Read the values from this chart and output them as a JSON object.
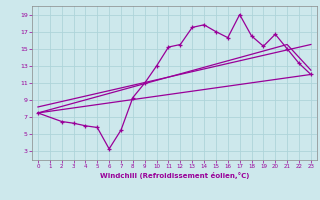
{
  "xlabel": "Windchill (Refroidissement éolien,°C)",
  "bg_color": "#cde8ec",
  "grid_color": "#aed4da",
  "line_color": "#990099",
  "xlim": [
    -0.5,
    23.5
  ],
  "ylim": [
    2,
    20
  ],
  "xticks": [
    0,
    1,
    2,
    3,
    4,
    5,
    6,
    7,
    8,
    9,
    10,
    11,
    12,
    13,
    14,
    15,
    16,
    17,
    18,
    19,
    20,
    21,
    22,
    23
  ],
  "yticks": [
    3,
    5,
    7,
    9,
    11,
    13,
    15,
    17,
    19
  ],
  "main_x": [
    0,
    2,
    3,
    4,
    5,
    6,
    7,
    8,
    9,
    10,
    11,
    12,
    13,
    14,
    15,
    16,
    17,
    18,
    19,
    20,
    21,
    22,
    23
  ],
  "main_y": [
    7.5,
    6.5,
    6.3,
    6.0,
    5.8,
    3.3,
    5.5,
    9.3,
    11.0,
    13.0,
    15.2,
    15.5,
    17.5,
    17.8,
    17.0,
    16.3,
    19.0,
    16.5,
    15.3,
    16.7,
    15.0,
    13.3,
    12.0
  ],
  "line1_x": [
    0,
    23
  ],
  "line1_y": [
    7.5,
    12.0
  ],
  "line2_x": [
    0,
    23
  ],
  "line2_y": [
    8.2,
    15.5
  ],
  "line3_x": [
    0,
    21,
    23
  ],
  "line3_y": [
    7.5,
    15.5,
    12.5
  ]
}
